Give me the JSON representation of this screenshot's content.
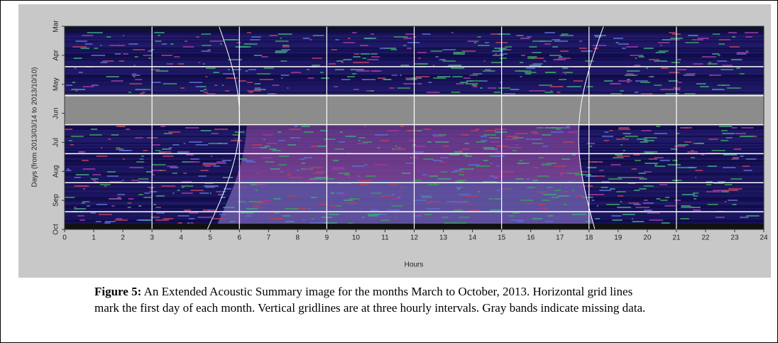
{
  "chart_data": {
    "type": "heatmap",
    "xlabel": "Hours",
    "ylabel": "Days (from 2013/03/14 to 2013/10/10)",
    "xlim": [
      0,
      24
    ],
    "xticks": [
      0,
      1,
      2,
      3,
      4,
      5,
      6,
      7,
      8,
      9,
      10,
      11,
      12,
      13,
      14,
      15,
      16,
      17,
      18,
      19,
      20,
      21,
      22,
      23,
      24
    ],
    "categories": [
      "Mar",
      "Apr",
      "May",
      "Jun",
      "Jul",
      "Aug",
      "Sep",
      "Oct"
    ]
  },
  "caption": {
    "label": "Figure 5:",
    "text": "An Extended Acoustic Summary image for the months March to October, 2013. Horizontal grid lines mark the first day of each month. Vertical gridlines are at three hourly intervals. Gray bands indicate missing data."
  }
}
